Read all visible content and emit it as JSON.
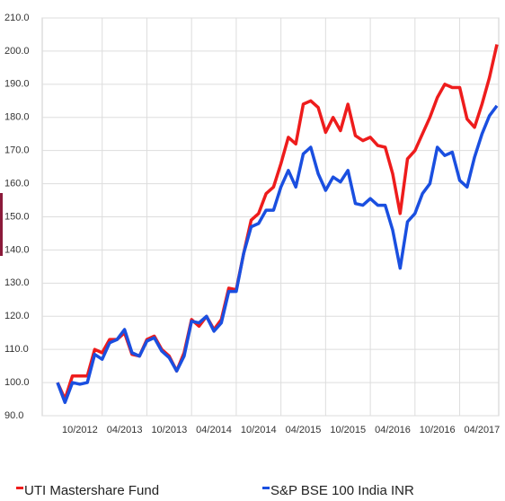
{
  "chart_data": {
    "type": "line",
    "categories": [
      null,
      null,
      null,
      "10/2012",
      null,
      null,
      null,
      null,
      null,
      "04/2013",
      null,
      null,
      null,
      null,
      null,
      "10/2013",
      null,
      null,
      null,
      null,
      null,
      "04/2014",
      null,
      null,
      null,
      null,
      null,
      "10/2014",
      null,
      null,
      null,
      null,
      null,
      "04/2015",
      null,
      null,
      null,
      null,
      null,
      "10/2015",
      null,
      null,
      null,
      null,
      null,
      "04/2016",
      null,
      null,
      null,
      null,
      null,
      "10/2016",
      null,
      null,
      null,
      null,
      null,
      "04/2017",
      null,
      null
    ],
    "series": [
      {
        "name": "UTI Mastershare Fund",
        "color": "#ee1c1c",
        "values": [
          100,
          95,
          102,
          102,
          102,
          110,
          109,
          113,
          113,
          115,
          108.5,
          108,
          113,
          114,
          110,
          108,
          103.5,
          109,
          119,
          117,
          120,
          116,
          119,
          128.5,
          128,
          139,
          149,
          151,
          157,
          159,
          166,
          174,
          172,
          184,
          185,
          183,
          175.5,
          180,
          176,
          184,
          174.5,
          173,
          174,
          171.5,
          171,
          163,
          151,
          167.5,
          170,
          175,
          180,
          186,
          190,
          189,
          189,
          179.5,
          177,
          184,
          192,
          202
        ]
      },
      {
        "name": "S&P BSE 100 India INR",
        "color": "#1a4fe0",
        "values": [
          100,
          94,
          100,
          99.5,
          100,
          108.5,
          107,
          112,
          113,
          116,
          109,
          108,
          112.5,
          113.5,
          109.5,
          107.5,
          103.5,
          108,
          118.5,
          118,
          120,
          115.5,
          118,
          127.5,
          127.5,
          139,
          147,
          148,
          152,
          152,
          159,
          164,
          159,
          169,
          171,
          163,
          158,
          162,
          160.5,
          164,
          154,
          153.5,
          155.5,
          153.5,
          153.5,
          146,
          134.5,
          148.5,
          151,
          157,
          160,
          171,
          168.5,
          169.5,
          161,
          159,
          168,
          175,
          180.5,
          183.5
        ]
      }
    ],
    "ylim": [
      90,
      210
    ],
    "yticks": [
      {
        "value": 90,
        "label": "90.0"
      },
      {
        "value": 100,
        "label": "100.0"
      },
      {
        "value": 110,
        "label": "110.0"
      },
      {
        "value": 120,
        "label": "120.0"
      },
      {
        "value": 130,
        "label": "130.0"
      },
      {
        "value": 140,
        "label": "140.0"
      },
      {
        "value": 150,
        "label": "150.0"
      },
      {
        "value": 160,
        "label": "160.0"
      },
      {
        "value": 170,
        "label": "170.0"
      },
      {
        "value": 180,
        "label": "180.0"
      },
      {
        "value": 190,
        "label": "190.0"
      },
      {
        "value": 200,
        "label": "200.0"
      },
      {
        "value": 210,
        "label": "210.0"
      }
    ],
    "grid": true
  }
}
